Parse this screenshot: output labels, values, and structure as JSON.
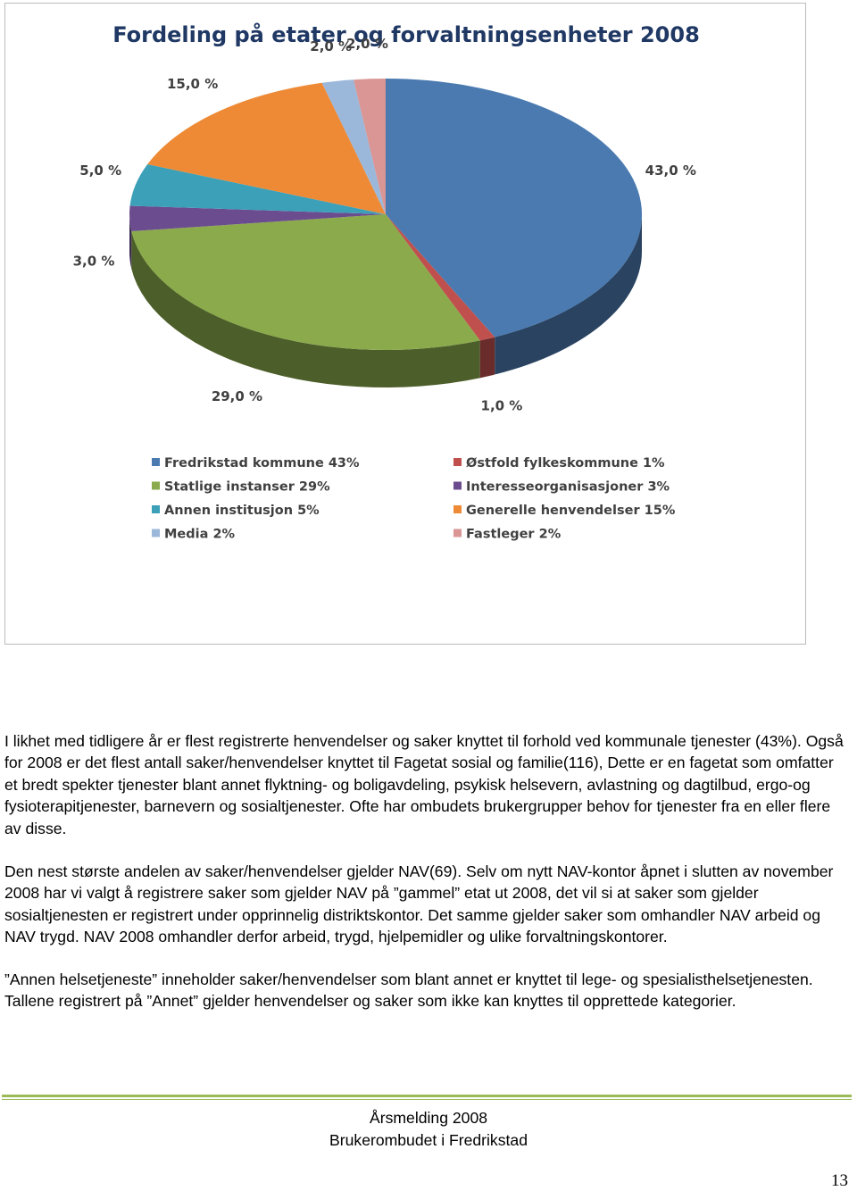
{
  "chart_data": {
    "type": "pie",
    "title": "Fordeling  på etater og forvaltningsenheter 2008",
    "categories": [
      "Fredrikstad kommune 43%",
      "Østfold fylkeskommune 1%",
      "Statlige instanser 29%",
      "Interesseorganisasjoner 3%",
      "Annen institusjon 5%",
      "Generelle henvendelser 15%",
      "Media 2%",
      "Fastleger 2%"
    ],
    "values": [
      43,
      1,
      29,
      3,
      5,
      15,
      2,
      2
    ],
    "value_labels": [
      "43,0 %",
      "1,0 %",
      "29,0 %",
      "3,0 %",
      "5,0 %",
      "15,0 %",
      "2,0 %",
      "2,0 %"
    ],
    "colors": [
      "#4a7ab0",
      "#c0504d",
      "#8aaa4b",
      "#6b4c8f",
      "#3ca0b8",
      "#ee8a35",
      "#9bb7d9",
      "#d99694"
    ]
  },
  "paragraphs": [
    "I likhet med tidligere år er  flest registrerte henvendelser og saker knyttet til forhold ved kommunale tjenester (43%). Også for 2008 er det flest antall saker/henvendelser knyttet til Fagetat sosial og familie(116), Dette er en fagetat som omfatter et bredt spekter tjenester blant annet  flyktning- og boligavdeling, psykisk helsevern, avlastning og dagtilbud, ergo-og fysioterapitjenester, barnevern og sosialtjenester. Ofte har ombudets brukergrupper behov for tjenester fra en eller flere av disse.",
    "Den nest største andelen av saker/henvendelser gjelder NAV(69). Selv om nytt NAV-kontor åpnet i slutten av november 2008 har vi valgt å registrere saker som gjelder NAV på ”gammel” etat ut 2008, det vil si at saker som gjelder sosialtjenesten er registrert under opprinnelig distriktskontor. Det samme gjelder saker som omhandler  NAV arbeid og NAV trygd. NAV 2008 omhandler derfor arbeid, trygd, hjelpemidler og ulike forvaltningskontorer.",
    "”Annen helsetjeneste” inneholder saker/henvendelser som blant annet er knyttet til lege- og spesialisthelsetjenesten. Tallene registrert på ”Annet” gjelder henvendelser og saker som ikke kan knyttes til opprettede kategorier."
  ],
  "footer": {
    "title": "Årsmelding 2008",
    "subtitle": "Brukerombudet i Fredrikstad",
    "page": "13"
  }
}
